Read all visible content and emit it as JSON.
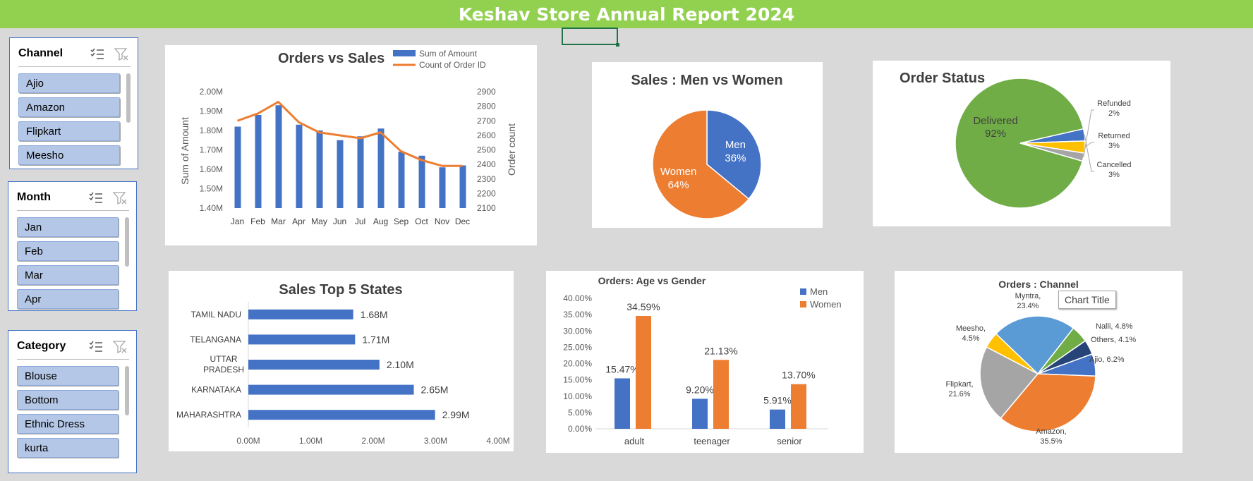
{
  "header": {
    "title": "Keshav Store Annual Report 2024"
  },
  "slicers": [
    {
      "title": "Channel",
      "items": [
        "Ajio",
        "Amazon",
        "Flipkart",
        "Meesho"
      ]
    },
    {
      "title": "Month",
      "items": [
        "Jan",
        "Feb",
        "Mar",
        "Apr"
      ]
    },
    {
      "title": "Category",
      "items": [
        "Blouse",
        "Bottom",
        "Ethnic Dress",
        "kurta"
      ]
    }
  ],
  "tooltip": {
    "text": "Chart Title"
  },
  "chart_data": [
    {
      "type": "bar",
      "title": "Orders vs Sales",
      "categories": [
        "Jan",
        "Feb",
        "Mar",
        "Apr",
        "May",
        "Jun",
        "Jul",
        "Aug",
        "Sep",
        "Oct",
        "Nov",
        "Dec"
      ],
      "series": [
        {
          "name": "Sum of Amount",
          "type": "bar",
          "axis": "left",
          "values": [
            1.82,
            1.88,
            1.93,
            1.83,
            1.8,
            1.75,
            1.77,
            1.81,
            1.69,
            1.67,
            1.61,
            1.62
          ]
        },
        {
          "name": "Count of Order ID",
          "type": "line",
          "axis": "right",
          "values": [
            2700,
            2750,
            2830,
            2690,
            2620,
            2600,
            2580,
            2620,
            2490,
            2430,
            2390,
            2390
          ]
        }
      ],
      "ylabel": "Sum of Amount",
      "y2label": "Order count",
      "ylim": [
        1.4,
        2.0
      ],
      "y2lim": [
        2100,
        2900
      ],
      "ytick_labels": [
        "1.40M",
        "1.50M",
        "1.60M",
        "1.70M",
        "1.80M",
        "1.90M",
        "2.00M"
      ],
      "y2tick_labels": [
        "2100",
        "2200",
        "2300",
        "2400",
        "2500",
        "2600",
        "2700",
        "2800",
        "2900"
      ],
      "legend": "top-right",
      "colors": {
        "bar": "#4472c4",
        "line": "#ed7d31"
      }
    },
    {
      "type": "pie",
      "title": "Sales : Men vs Women",
      "slices": [
        {
          "label": "Men",
          "value": 36,
          "pct": "36%",
          "color": "#4472c4"
        },
        {
          "label": "Women",
          "value": 64,
          "pct": "64%",
          "color": "#ed7d31"
        }
      ]
    },
    {
      "type": "pie",
      "title": "Order Status",
      "slices": [
        {
          "label": "Delivered",
          "value": 92,
          "pct": "92%",
          "color": "#70ad47"
        },
        {
          "label": "Refunded",
          "value": 2,
          "pct": "2%",
          "color": "#a5a5a5"
        },
        {
          "label": "Returned",
          "value": 3,
          "pct": "3%",
          "color": "#ffc000"
        },
        {
          "label": "Cancelled",
          "value": 3,
          "pct": "3%",
          "color": "#4472c4"
        }
      ]
    },
    {
      "type": "bar",
      "orientation": "horizontal",
      "title": "Sales Top 5 States",
      "categories": [
        "TAMIL NADU",
        "TELANGANA",
        "UTTAR PRADESH",
        "KARNATAKA",
        "MAHARASHTRA"
      ],
      "values": [
        1.68,
        1.71,
        2.1,
        2.65,
        2.99
      ],
      "data_labels": [
        "1.68M",
        "1.71M",
        "2.10M",
        "2.65M",
        "2.99M"
      ],
      "xlim": [
        0,
        4.0
      ],
      "xtick_labels": [
        "0.00M",
        "1.00M",
        "2.00M",
        "3.00M",
        "4.00M"
      ],
      "color": "#4472c4"
    },
    {
      "type": "bar",
      "title": "Orders: Age vs Gender",
      "categories": [
        "adult",
        "teenager",
        "senior"
      ],
      "series": [
        {
          "name": "Men",
          "values": [
            15.47,
            9.2,
            5.91
          ],
          "labels": [
            "15.47%",
            "9.20%",
            "5.91%"
          ],
          "color": "#4472c4"
        },
        {
          "name": "Women",
          "values": [
            34.59,
            21.13,
            13.7
          ],
          "labels": [
            "34.59%",
            "21.13%",
            "13.70%"
          ],
          "color": "#ed7d31"
        }
      ],
      "ylim": [
        0,
        40
      ],
      "ytick_labels": [
        "0.00%",
        "5.00%",
        "10.00%",
        "15.00%",
        "20.00%",
        "25.00%",
        "30.00%",
        "35.00%",
        "40.00%"
      ],
      "legend": "top-right"
    },
    {
      "type": "pie",
      "title": "Orders : Channel",
      "slices": [
        {
          "label": "Ajio",
          "value": 6.2,
          "text": "Ajio, 6.2%",
          "color": "#4472c4"
        },
        {
          "label": "Amazon",
          "value": 35.5,
          "text": "Amazon,|35.5%",
          "color": "#ed7d31"
        },
        {
          "label": "Flipkart",
          "value": 21.6,
          "text": "Flipkart,|21.6%",
          "color": "#a5a5a5"
        },
        {
          "label": "Meesho",
          "value": 4.5,
          "text": "Meesho,|4.5%",
          "color": "#ffc000"
        },
        {
          "label": "Myntra",
          "value": 23.4,
          "text": "Myntra,|23.4%",
          "color": "#5b9bd5"
        },
        {
          "label": "Nalli",
          "value": 4.8,
          "text": "Nalli, 4.8%",
          "color": "#70ad47"
        },
        {
          "label": "Others",
          "value": 4.1,
          "text": "Others, 4.1%",
          "color": "#264478"
        }
      ]
    }
  ]
}
